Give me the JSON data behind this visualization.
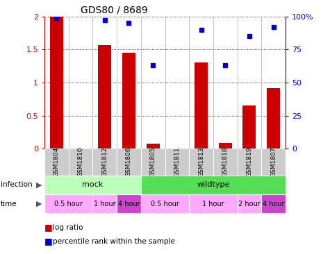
{
  "title": "GDS80 / 8689",
  "samples": [
    "GSM1804",
    "GSM1810",
    "GSM1812",
    "GSM1806",
    "GSM1805",
    "GSM1811",
    "GSM1813",
    "GSM1818",
    "GSM1819",
    "GSM1807"
  ],
  "log_ratio": [
    2.0,
    0.0,
    1.57,
    1.45,
    0.07,
    0.0,
    1.3,
    0.08,
    0.65,
    0.92
  ],
  "percentile": [
    99,
    0,
    97,
    95,
    63,
    0,
    90,
    63,
    85,
    92
  ],
  "ylim_left": [
    0,
    2.0
  ],
  "ylim_right": [
    0,
    100
  ],
  "yticks_left": [
    0,
    0.5,
    1.0,
    1.5,
    2.0
  ],
  "ytick_labels_left": [
    "0",
    "0.5",
    "1",
    "1.5",
    "2"
  ],
  "yticks_right": [
    0,
    25,
    50,
    75,
    100
  ],
  "ytick_labels_right": [
    "0",
    "25",
    "50",
    "75",
    "100%"
  ],
  "bar_color": "#cc0000",
  "dot_color": "#0000cc",
  "infection_groups": [
    {
      "label": "mock",
      "start": 0,
      "end": 4,
      "color": "#bbffbb"
    },
    {
      "label": "wildtype",
      "start": 4,
      "end": 10,
      "color": "#55dd55"
    }
  ],
  "time_groups": [
    {
      "label": "0.5 hour",
      "start": 0,
      "end": 2,
      "color": "#ffaaff"
    },
    {
      "label": "1 hour",
      "start": 2,
      "end": 3,
      "color": "#ffaaff"
    },
    {
      "label": "4 hour",
      "start": 3,
      "end": 4,
      "color": "#cc44cc"
    },
    {
      "label": "0.5 hour",
      "start": 4,
      "end": 6,
      "color": "#ffaaff"
    },
    {
      "label": "1 hour",
      "start": 6,
      "end": 8,
      "color": "#ffaaff"
    },
    {
      "label": "2 hour",
      "start": 8,
      "end": 9,
      "color": "#ffaaff"
    },
    {
      "label": "4 hour",
      "start": 9,
      "end": 10,
      "color": "#cc44cc"
    }
  ],
  "sample_bg_color": "#cccccc",
  "legend_bar_label": "log ratio",
  "legend_dot_label": "percentile rank within the sample"
}
